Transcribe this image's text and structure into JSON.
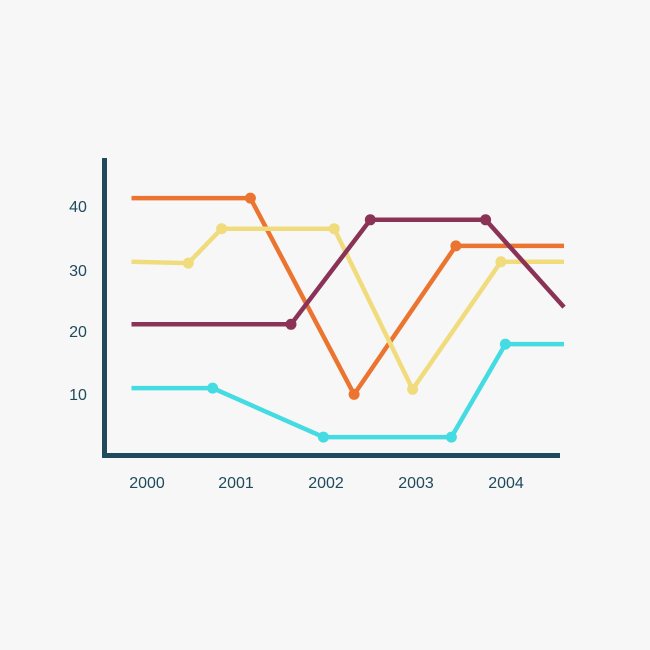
{
  "chart_data": {
    "type": "line",
    "title": "",
    "xlabel": "",
    "ylabel": "",
    "x_ticks": [
      "2000",
      "2001",
      "2002",
      "2003",
      "2004"
    ],
    "y_ticks": [
      "10",
      "20",
      "30",
      "40"
    ],
    "xlim": [
      1999.7,
      2004.65
    ],
    "ylim": [
      0,
      48
    ],
    "grid": false,
    "legend": "none",
    "axis_color": "#1f4a5c",
    "series": [
      {
        "color": "#eb7530",
        "x": [
          1999.85,
          2001.17,
          2002.32,
          2003.45,
          2004.65
        ],
        "y": [
          40.3,
          40.3,
          9.5,
          32.8,
          32.8
        ],
        "markers": [
          false,
          true,
          true,
          true,
          false
        ]
      },
      {
        "color": "#f0dc7d",
        "x": [
          1999.85,
          2000.48,
          2000.85,
          2002.1,
          2002.97,
          2003.95,
          2004.65
        ],
        "y": [
          30.3,
          30.1,
          35.5,
          35.5,
          10.3,
          30.3,
          30.3
        ],
        "markers": [
          false,
          true,
          true,
          true,
          true,
          true,
          false
        ]
      },
      {
        "color": "#8a3356",
        "x": [
          1999.85,
          2001.62,
          2002.5,
          2003.78,
          2004.65
        ],
        "y": [
          20.5,
          20.5,
          36.9,
          36.9,
          23.2
        ],
        "markers": [
          false,
          true,
          true,
          true,
          false
        ]
      },
      {
        "color": "#44dbe2",
        "x": [
          1999.85,
          2000.75,
          2001.98,
          2003.4,
          2004.0,
          2004.65
        ],
        "y": [
          10.5,
          10.5,
          2.8,
          2.8,
          17.4,
          17.4
        ],
        "markers": [
          false,
          true,
          true,
          true,
          true,
          false
        ]
      }
    ]
  }
}
